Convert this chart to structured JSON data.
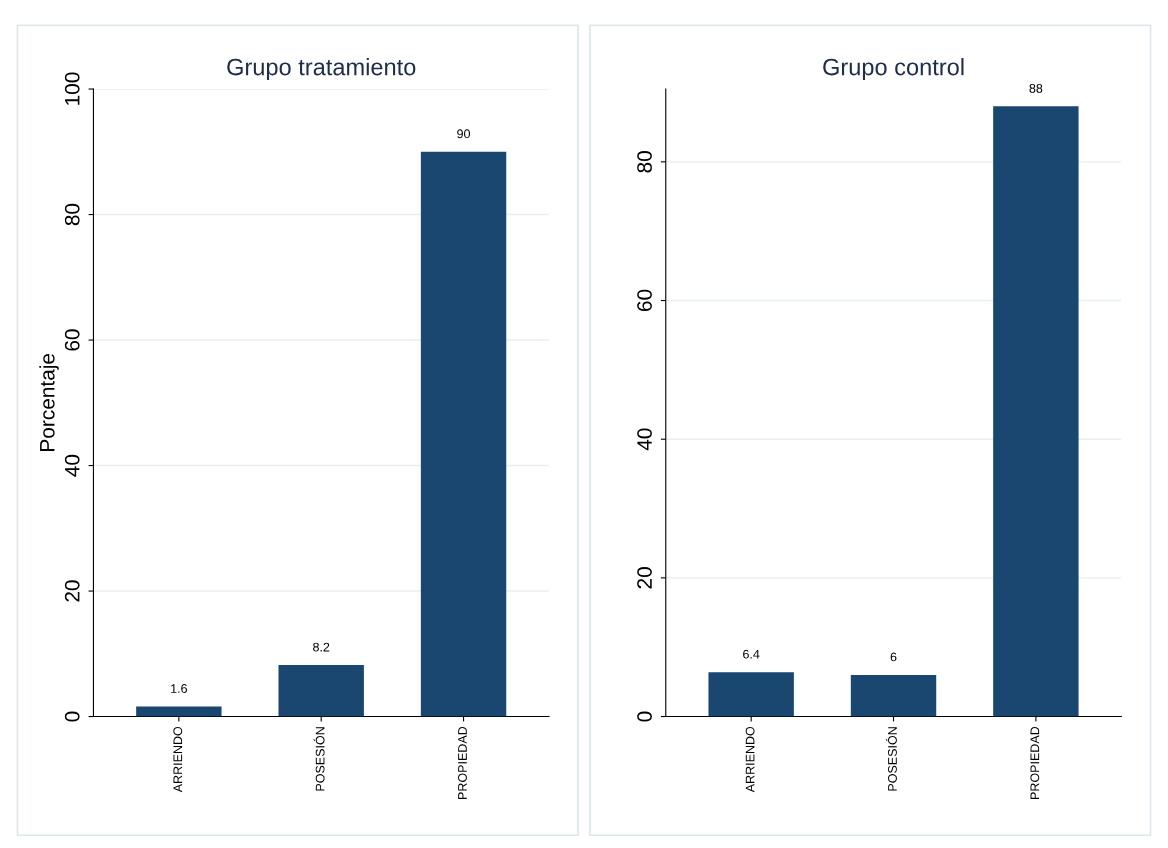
{
  "chart_data": [
    {
      "type": "bar",
      "title": "Grupo tratamiento",
      "ylabel": "Porcentaje",
      "categories": [
        "ARRIENDO",
        "POSESIÓN",
        "PROPIEDAD"
      ],
      "values": [
        1.6,
        8.2,
        90
      ],
      "color": "#1a476f",
      "ylim": [
        0,
        100
      ],
      "yticks": [
        0,
        20,
        40,
        60,
        80,
        100
      ],
      "grid": "y",
      "data_labels": true
    },
    {
      "type": "bar",
      "title": "Grupo control",
      "categories": [
        "ARRIENDO",
        "POSESIÓN",
        "PROPIEDAD"
      ],
      "values": [
        6.4,
        6,
        88
      ],
      "color": "#1a476f",
      "ylim": [
        0,
        90.5
      ],
      "yticks": [
        0,
        20,
        40,
        60,
        80
      ],
      "grid": "y",
      "data_labels": true
    }
  ]
}
